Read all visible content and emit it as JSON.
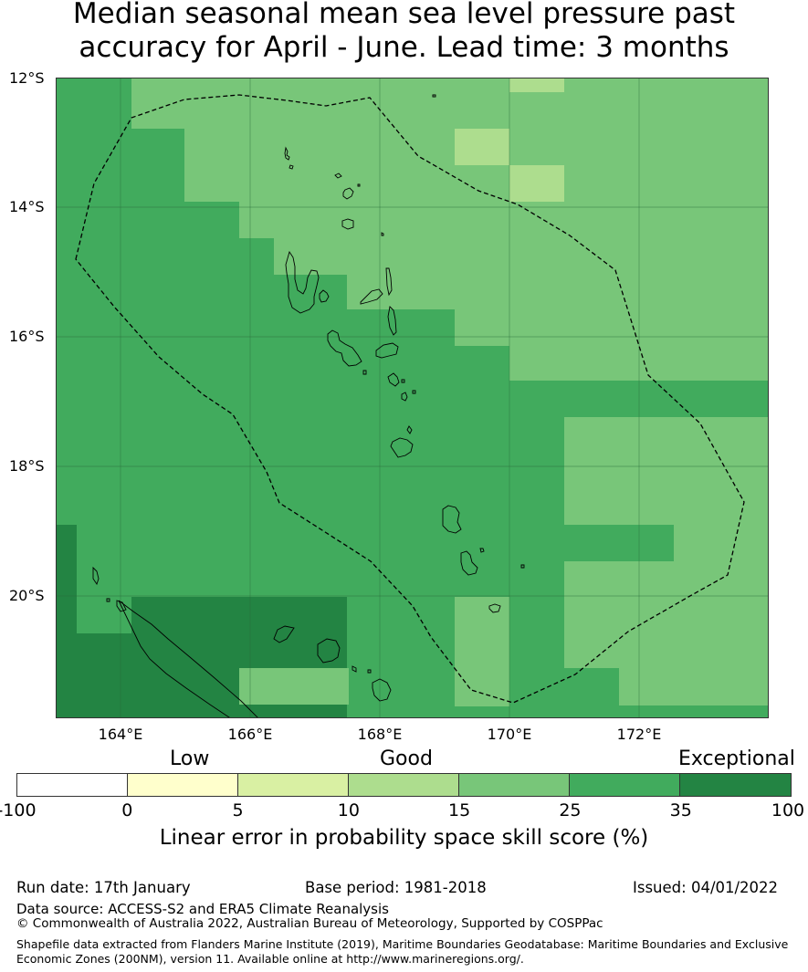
{
  "title": {
    "line1": "Median seasonal mean sea level pressure past",
    "line2": "accuracy for April - June. Lead time: 3 months"
  },
  "map": {
    "lat_labels": [
      "12°S",
      "14°S",
      "16°S",
      "18°S",
      "20°S"
    ],
    "lon_labels": [
      "164°E",
      "166°E",
      "168°E",
      "170°E",
      "172°E"
    ],
    "lat_range": [
      -21.9,
      -12
    ],
    "lon_range": [
      163,
      174
    ],
    "grid_step_lat": 0.5625,
    "grid_step_lon": 0.833,
    "eez_boundary": "dashed",
    "grid_lines": true,
    "skill_palette": {
      "neg": "#ffffff",
      "c0_5": "#ffffcc",
      "c5_10": "#d9f0a3",
      "c10_15": "#addd8e",
      "c15_25": "#78c679",
      "c25_35": "#41ab5d",
      "c35_100": "#238443"
    }
  },
  "colorbar": {
    "categories": [
      "Low",
      "Good",
      "Exceptional"
    ],
    "ticks": [
      "-100",
      "0",
      "5",
      "10",
      "15",
      "25",
      "35",
      "100"
    ],
    "colors": [
      "#ffffff",
      "#ffffcc",
      "#d9f0a3",
      "#addd8e",
      "#78c679",
      "#41ab5d",
      "#238443"
    ],
    "label": "Linear error in probability space skill score (%)"
  },
  "footer": {
    "run_date": "Run date: 17th January",
    "base_period": "Base period: 1981-2018",
    "issued": "Issued: 04/01/2022",
    "data_source": "Data source: ACCESS-S2 and ERA5 Climate Reanalysis",
    "copyright": "© Commonwealth of Australia 2022, Australian Bureau of Meteorology, Supported by COSPPac",
    "shapefile": "Shapefile data extracted from Flanders Marine Institute (2019), Maritime Boundaries Geodatabase: Maritime Boundaries and Exclusive Economic Zones (200NM), version 11. Available online at http://www.marineregions.org/."
  }
}
